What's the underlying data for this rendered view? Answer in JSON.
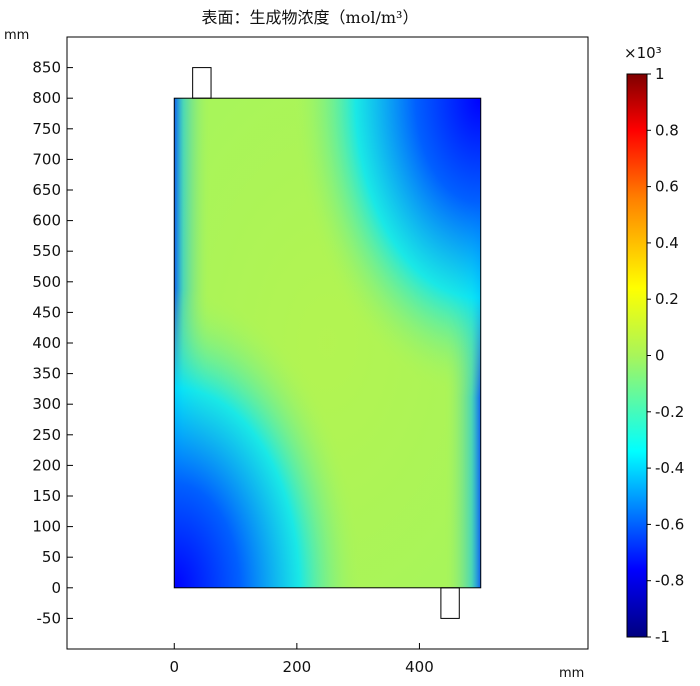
{
  "chart_data": {
    "type": "heatmap",
    "title": "表面：生成物浓度（mol/m³）",
    "x_unit": "mm",
    "y_unit": "mm",
    "xlim": [
      -175,
      675
    ],
    "ylim": [
      -100,
      900
    ],
    "x_ticks": [
      0,
      200,
      400
    ],
    "y_ticks": [
      -50,
      0,
      50,
      100,
      150,
      200,
      250,
      300,
      350,
      400,
      450,
      500,
      550,
      600,
      650,
      700,
      750,
      800,
      850
    ],
    "domain": {
      "x_range": [
        0,
        500
      ],
      "y_range": [
        0,
        800
      ]
    },
    "inlet": {
      "x_range": [
        30,
        60
      ],
      "y_range": [
        800,
        850
      ]
    },
    "outlet": {
      "x_range": [
        435,
        465
      ],
      "y_range": [
        -50,
        0
      ]
    },
    "colorbar": {
      "multiplier": "×10³",
      "min": -1,
      "max": 1,
      "ticks": [
        1,
        0.8,
        0.6,
        0.4,
        0.2,
        0,
        -0.2,
        -0.4,
        -0.6,
        -0.8,
        -1
      ],
      "colormap": "rainbow",
      "colors": [
        "#00007f",
        "#0000ff",
        "#00ffff",
        "#a8f55a",
        "#ffff00",
        "#ff7f00",
        "#ff0000",
        "#7f0000"
      ]
    }
  }
}
